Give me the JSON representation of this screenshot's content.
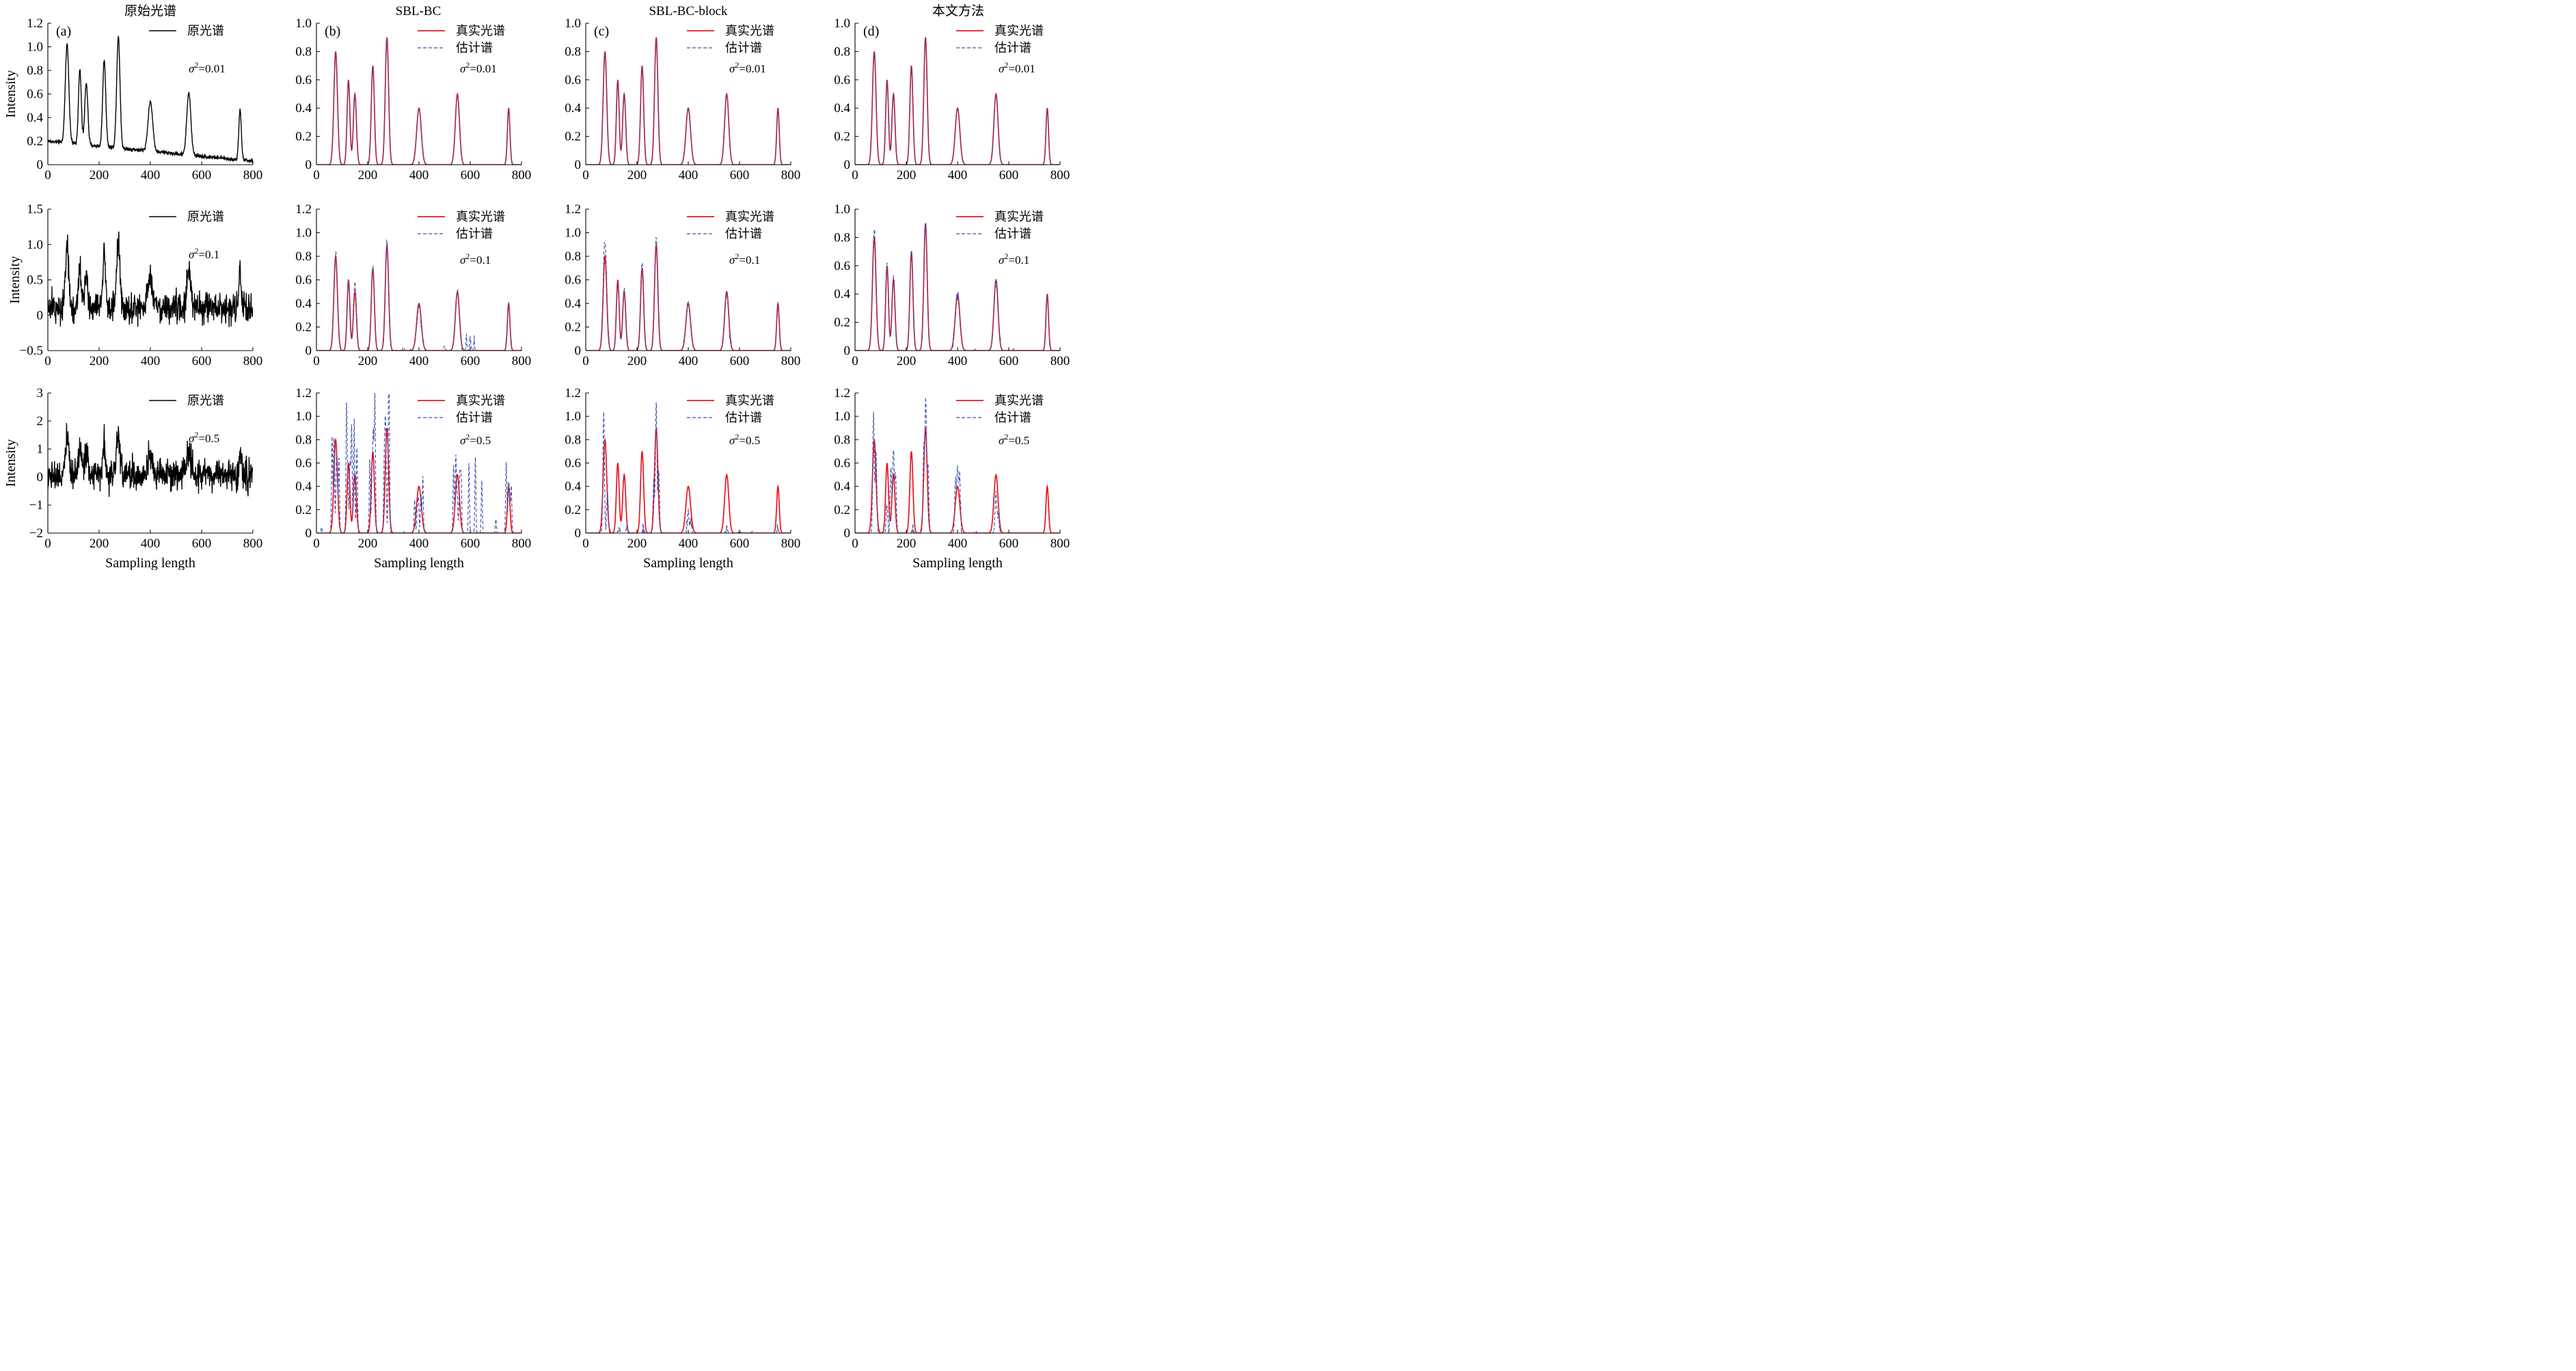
{
  "column_titles": [
    "原始光谱",
    "SBL-BC",
    "SBL-BC-block",
    "本文方法"
  ],
  "colors": {
    "original": "#000000",
    "true": "#e8141e",
    "estimate": "#3a4fb0"
  },
  "chart_data": [
    {
      "id": "a1",
      "type": "line",
      "panel_label": "(a)",
      "row": 0,
      "col": 0,
      "ylabel": "Intensity",
      "xlabel": "",
      "xlim": [
        0,
        800
      ],
      "ylim": [
        0,
        1.2
      ],
      "xticks": [
        "0",
        "200",
        "400",
        "600",
        "800"
      ],
      "yticks": [
        "0",
        "0.2",
        "0.4",
        "0.6",
        "0.8",
        "1.0",
        "1.2"
      ],
      "legend": [
        {
          "name": "原光谱",
          "style": "original"
        }
      ],
      "annotation": {
        "sym": "σ",
        "sup": "2",
        "rest": "=0.01"
      },
      "noise": 0.01,
      "peaks": [
        [
          75,
          0.8,
          6
        ],
        [
          125,
          0.55,
          5
        ],
        [
          150,
          0.48,
          6
        ],
        [
          220,
          0.65,
          5
        ],
        [
          275,
          0.85,
          6
        ],
        [
          400,
          0.35,
          8
        ],
        [
          550,
          0.45,
          7
        ],
        [
          750,
          0.38,
          4
        ]
      ],
      "baseline": "decay"
    },
    {
      "id": "b1",
      "type": "line",
      "panel_label": "(b)",
      "row": 0,
      "col": 1,
      "ylabel": "",
      "xlabel": "",
      "xlim": [
        0,
        800
      ],
      "ylim": [
        0,
        1.0
      ],
      "xticks": [
        "0",
        "200",
        "400",
        "600",
        "800"
      ],
      "yticks": [
        "0",
        "0.2",
        "0.4",
        "0.6",
        "0.8",
        "1.0"
      ],
      "legend": [
        {
          "name": "真实光谱",
          "style": "true"
        },
        {
          "name": "估计谱",
          "style": "estimate"
        }
      ],
      "annotation": {
        "sym": "σ",
        "sup": "2",
        "rest": "=0.01"
      },
      "recovery": "perfect"
    },
    {
      "id": "c1",
      "type": "line",
      "panel_label": "(c)",
      "row": 0,
      "col": 2,
      "ylabel": "",
      "xlabel": "",
      "xlim": [
        0,
        800
      ],
      "ylim": [
        0,
        1.0
      ],
      "xticks": [
        "0",
        "200",
        "400",
        "600",
        "800"
      ],
      "yticks": [
        "0",
        "0.2",
        "0.4",
        "0.6",
        "0.8",
        "1.0"
      ],
      "legend": [
        {
          "name": "真实光谱",
          "style": "true"
        },
        {
          "name": "估计谱",
          "style": "estimate"
        }
      ],
      "annotation": {
        "sym": "σ",
        "sup": "2",
        "rest": "=0.01"
      },
      "recovery": "perfect"
    },
    {
      "id": "d1",
      "type": "line",
      "panel_label": "(d)",
      "row": 0,
      "col": 3,
      "ylabel": "",
      "xlabel": "",
      "xlim": [
        0,
        800
      ],
      "ylim": [
        0,
        1.0
      ],
      "xticks": [
        "0",
        "200",
        "400",
        "600",
        "800"
      ],
      "yticks": [
        "0",
        "0.2",
        "0.4",
        "0.6",
        "0.8",
        "1.0"
      ],
      "legend": [
        {
          "name": "真实光谱",
          "style": "true"
        },
        {
          "name": "估计谱",
          "style": "estimate"
        }
      ],
      "annotation": {
        "sym": "σ",
        "sup": "2",
        "rest": "=0.01"
      },
      "recovery": "perfect"
    },
    {
      "id": "a2",
      "type": "line",
      "panel_label": "",
      "row": 1,
      "col": 0,
      "ylabel": "Intensity",
      "xlabel": "",
      "xlim": [
        0,
        800
      ],
      "ylim": [
        -0.5,
        1.5
      ],
      "xticks": [
        "0",
        "200",
        "400",
        "600",
        "800"
      ],
      "yticks": [
        "−0.5",
        "0",
        "0.5",
        "1.0",
        "1.5"
      ],
      "legend": [
        {
          "name": "原光谱",
          "style": "original"
        }
      ],
      "annotation": {
        "sym": "σ",
        "sup": "2",
        "rest": "=0.1"
      },
      "noise": 0.12,
      "peaks": [
        [
          75,
          0.8,
          6
        ],
        [
          125,
          0.55,
          5
        ],
        [
          150,
          0.48,
          6
        ],
        [
          220,
          0.65,
          5
        ],
        [
          275,
          0.85,
          6
        ],
        [
          400,
          0.35,
          8
        ],
        [
          550,
          0.45,
          7
        ],
        [
          750,
          0.38,
          4
        ]
      ],
      "baseline": "flat"
    },
    {
      "id": "b2",
      "type": "line",
      "panel_label": "",
      "row": 1,
      "col": 1,
      "ylabel": "",
      "xlabel": "",
      "xlim": [
        0,
        800
      ],
      "ylim": [
        0,
        1.2
      ],
      "xticks": [
        "0",
        "200",
        "400",
        "600",
        "800"
      ],
      "yticks": [
        "0",
        "0.2",
        "0.4",
        "0.6",
        "0.8",
        "1.0",
        "1.2"
      ],
      "legend": [
        {
          "name": "真实光谱",
          "style": "true"
        },
        {
          "name": "估计谱",
          "style": "estimate"
        }
      ],
      "annotation": {
        "sym": "σ",
        "sup": "2",
        "rest": "=0.1"
      },
      "recovery": "medium",
      "extra": [
        [
          340,
          0.03,
          3
        ],
        [
          370,
          0.02,
          3
        ],
        [
          500,
          0.04,
          3
        ],
        [
          585,
          0.1,
          2
        ],
        [
          600,
          0.12,
          2
        ],
        [
          615,
          0.08,
          2
        ]
      ]
    },
    {
      "id": "c2",
      "type": "line",
      "panel_label": "",
      "row": 1,
      "col": 2,
      "ylabel": "",
      "xlabel": "",
      "xlim": [
        0,
        800
      ],
      "ylim": [
        0,
        1.2
      ],
      "xticks": [
        "0",
        "200",
        "400",
        "600",
        "800"
      ],
      "yticks": [
        "0",
        "0.2",
        "0.4",
        "0.6",
        "0.8",
        "1.0",
        "1.2"
      ],
      "legend": [
        {
          "name": "真实光谱",
          "style": "true"
        },
        {
          "name": "估计谱",
          "style": "estimate"
        }
      ],
      "annotation": {
        "sym": "σ",
        "sup": "2",
        "rest": "=0.1"
      },
      "recovery": "medium",
      "extra": []
    },
    {
      "id": "d2",
      "type": "line",
      "panel_label": "",
      "row": 1,
      "col": 3,
      "ylabel": "",
      "xlabel": "",
      "xlim": [
        0,
        800
      ],
      "ylim": [
        0,
        1.0
      ],
      "xticks": [
        "0",
        "200",
        "400",
        "600",
        "800"
      ],
      "yticks": [
        "0",
        "0.2",
        "0.4",
        "0.6",
        "0.8",
        "1.0"
      ],
      "legend": [
        {
          "name": "真实光谱",
          "style": "true"
        },
        {
          "name": "估计谱",
          "style": "estimate"
        }
      ],
      "annotation": {
        "sym": "σ",
        "sup": "2",
        "rest": "=0.1"
      },
      "recovery": "small",
      "extra": [
        [
          470,
          0.01,
          3
        ],
        [
          620,
          0.015,
          3
        ]
      ]
    },
    {
      "id": "a3",
      "type": "line",
      "panel_label": "",
      "row": 2,
      "col": 0,
      "ylabel": "Intensity",
      "xlabel": "Sampling length",
      "xlim": [
        0,
        800
      ],
      "ylim": [
        -2,
        3
      ],
      "xticks": [
        "0",
        "200",
        "400",
        "600",
        "800"
      ],
      "yticks": [
        "−2",
        "−1",
        "0",
        "1",
        "2",
        "3"
      ],
      "legend": [
        {
          "name": "原光谱",
          "style": "original"
        }
      ],
      "annotation": {
        "sym": "σ",
        "sup": "2",
        "rest": "=0.5"
      },
      "noise": 0.5,
      "peaks": [
        [
          75,
          0.8,
          6
        ],
        [
          125,
          0.55,
          5
        ],
        [
          150,
          0.48,
          6
        ],
        [
          220,
          0.65,
          5
        ],
        [
          275,
          0.85,
          6
        ],
        [
          400,
          0.35,
          8
        ],
        [
          550,
          0.45,
          7
        ],
        [
          750,
          0.38,
          4
        ]
      ],
      "baseline": "flat"
    },
    {
      "id": "b3",
      "type": "line",
      "panel_label": "",
      "row": 2,
      "col": 1,
      "ylabel": "",
      "xlabel": "Sampling length",
      "xlim": [
        0,
        800
      ],
      "ylim": [
        0,
        1.2
      ],
      "xticks": [
        "0",
        "200",
        "400",
        "600",
        "800"
      ],
      "yticks": [
        "0",
        "0.2",
        "0.4",
        "0.6",
        "0.8",
        "1.0",
        "1.2"
      ],
      "legend": [
        {
          "name": "真实光谱",
          "style": "true"
        },
        {
          "name": "估计谱",
          "style": "estimate"
        }
      ],
      "annotation": {
        "sym": "σ",
        "sup": "2",
        "rest": "=0.5"
      },
      "recovery": "spiky",
      "extra": [
        [
          565,
          0.45,
          2
        ],
        [
          595,
          0.6,
          2
        ],
        [
          620,
          0.65,
          2
        ],
        [
          645,
          0.45,
          2
        ],
        [
          700,
          0.12,
          2
        ],
        [
          20,
          0.05,
          2
        ],
        [
          340,
          0.02,
          2
        ]
      ]
    },
    {
      "id": "c3",
      "type": "line",
      "panel_label": "",
      "row": 2,
      "col": 2,
      "ylabel": "",
      "xlabel": "Sampling length",
      "xlim": [
        0,
        800
      ],
      "ylim": [
        0,
        1.2
      ],
      "xticks": [
        "0",
        "200",
        "400",
        "600",
        "800"
      ],
      "yticks": [
        "0",
        "0.2",
        "0.4",
        "0.6",
        "0.8",
        "1.0",
        "1.2"
      ],
      "legend": [
        {
          "name": "真实光谱",
          "style": "true"
        },
        {
          "name": "估计谱",
          "style": "estimate"
        }
      ],
      "annotation": {
        "sym": "σ",
        "sup": "2",
        "rest": "=0.5"
      },
      "recovery": "block",
      "est_peaks": [
        [
          70,
          1.02,
          3
        ],
        [
          85,
          0.35,
          3
        ],
        [
          130,
          0.05,
          3
        ],
        [
          160,
          0.06,
          3
        ],
        [
          225,
          0.04,
          3
        ],
        [
          265,
          0.4,
          3
        ],
        [
          275,
          1.12,
          3
        ],
        [
          285,
          0.5,
          3
        ],
        [
          400,
          0.17,
          4
        ],
        [
          410,
          0.08,
          3
        ],
        [
          550,
          0.06,
          3
        ],
        [
          600,
          0.02,
          3
        ],
        [
          650,
          0.015,
          3
        ],
        [
          750,
          0.04,
          3
        ]
      ]
    },
    {
      "id": "d3",
      "type": "line",
      "panel_label": "",
      "row": 2,
      "col": 3,
      "ylabel": "",
      "xlabel": "Sampling length",
      "xlim": [
        0,
        800
      ],
      "ylim": [
        0,
        1.2
      ],
      "xticks": [
        "0",
        "200",
        "400",
        "600",
        "800"
      ],
      "yticks": [
        "0",
        "0.2",
        "0.4",
        "0.6",
        "0.8",
        "1.0",
        "1.2"
      ],
      "legend": [
        {
          "name": "真实光谱",
          "style": "true"
        },
        {
          "name": "估计谱",
          "style": "estimate"
        }
      ],
      "annotation": {
        "sym": "σ",
        "sup": "2",
        "rest": "=0.5"
      },
      "recovery": "ours",
      "est_peaks": [
        [
          72,
          1.0,
          3
        ],
        [
          82,
          0.7,
          3
        ],
        [
          125,
          0.25,
          3
        ],
        [
          140,
          0.55,
          3
        ],
        [
          150,
          0.72,
          3
        ],
        [
          158,
          0.5,
          3
        ],
        [
          225,
          0.05,
          3
        ],
        [
          268,
          0.7,
          3
        ],
        [
          276,
          1.15,
          3
        ],
        [
          285,
          0.6,
          3
        ],
        [
          392,
          0.45,
          3
        ],
        [
          400,
          0.55,
          3
        ],
        [
          408,
          0.48,
          3
        ],
        [
          470,
          0.02,
          3
        ],
        [
          550,
          0.3,
          4
        ],
        [
          560,
          0.15,
          3
        ]
      ]
    }
  ]
}
